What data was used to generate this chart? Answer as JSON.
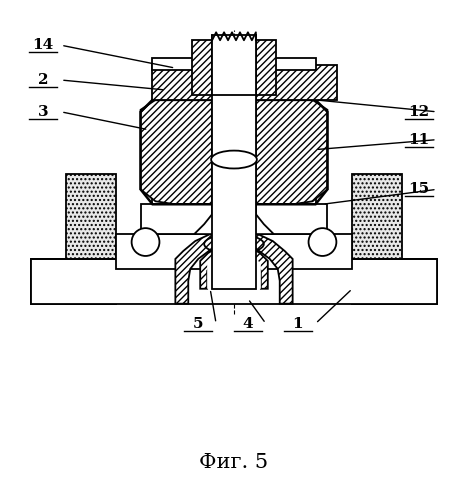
{
  "title": "Фиг. 5",
  "title_fontsize": 15,
  "background_color": "#ffffff",
  "line_color": "#000000"
}
